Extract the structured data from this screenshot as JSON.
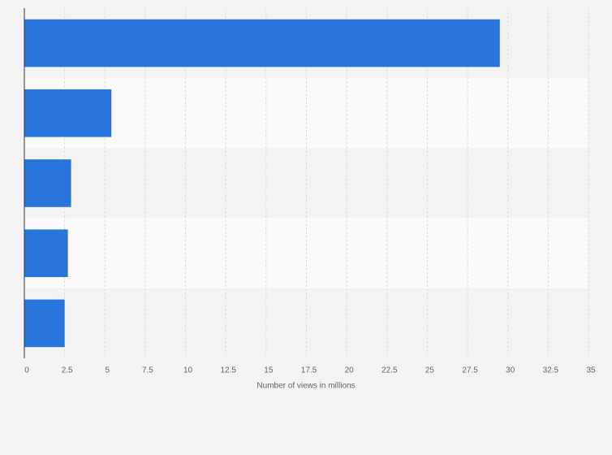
{
  "chart_data": {
    "type": "bar",
    "orientation": "horizontal",
    "xlabel": "Number of views in millions",
    "categories": [
      null,
      null,
      null,
      null,
      null
    ],
    "values": [
      29.5,
      5.4,
      2.9,
      2.7,
      2.5
    ],
    "color": "#2876dd",
    "xlim": [
      0,
      35
    ],
    "xticks": [
      0,
      2.5,
      5,
      7.5,
      10,
      12.5,
      15,
      17.5,
      20,
      22.5,
      25,
      27.5,
      30,
      32.5,
      35
    ],
    "grid": true
  }
}
